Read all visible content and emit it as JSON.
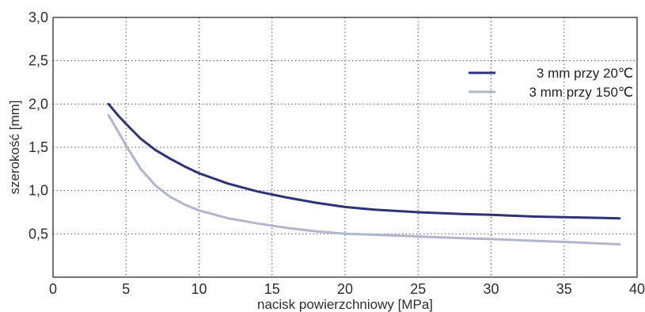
{
  "chart_data": {
    "type": "line",
    "xlabel": "nacisk powierzchniowy [MPa]",
    "ylabel": "szerokość [mm]",
    "xlim": [
      0,
      40
    ],
    "ylim": [
      0,
      3.0
    ],
    "x_ticks": [
      "0",
      "5",
      "10",
      "15",
      "20",
      "25",
      "30",
      "35",
      "40"
    ],
    "y_ticks": [
      "0,5",
      "1,0",
      "1,5",
      "2,0",
      "2,5",
      "3,0"
    ],
    "grid": true,
    "legend_position": "top-right",
    "series": [
      {
        "name": "3 mm przy 20℃",
        "color": "#2e3373",
        "points": [
          [
            3.8,
            2.0
          ],
          [
            4.5,
            1.86
          ],
          [
            5,
            1.77
          ],
          [
            6,
            1.6
          ],
          [
            7,
            1.47
          ],
          [
            8,
            1.37
          ],
          [
            9,
            1.28
          ],
          [
            10,
            1.2
          ],
          [
            12,
            1.08
          ],
          [
            14,
            0.99
          ],
          [
            16,
            0.92
          ],
          [
            18,
            0.86
          ],
          [
            20,
            0.81
          ],
          [
            22,
            0.78
          ],
          [
            25,
            0.75
          ],
          [
            28,
            0.73
          ],
          [
            30,
            0.72
          ],
          [
            33,
            0.7
          ],
          [
            36,
            0.69
          ],
          [
            38.8,
            0.68
          ]
        ]
      },
      {
        "name": "3 mm przy 150℃",
        "color": "#b2b5cc",
        "points": [
          [
            3.8,
            1.87
          ],
          [
            4.5,
            1.67
          ],
          [
            5,
            1.52
          ],
          [
            6,
            1.25
          ],
          [
            7,
            1.06
          ],
          [
            8,
            0.93
          ],
          [
            9,
            0.84
          ],
          [
            10,
            0.77
          ],
          [
            12,
            0.68
          ],
          [
            14,
            0.62
          ],
          [
            16,
            0.57
          ],
          [
            18,
            0.53
          ],
          [
            20,
            0.5
          ],
          [
            22,
            0.49
          ],
          [
            25,
            0.47
          ],
          [
            28,
            0.45
          ],
          [
            30,
            0.44
          ],
          [
            33,
            0.42
          ],
          [
            36,
            0.4
          ],
          [
            38.8,
            0.38
          ]
        ]
      }
    ]
  }
}
